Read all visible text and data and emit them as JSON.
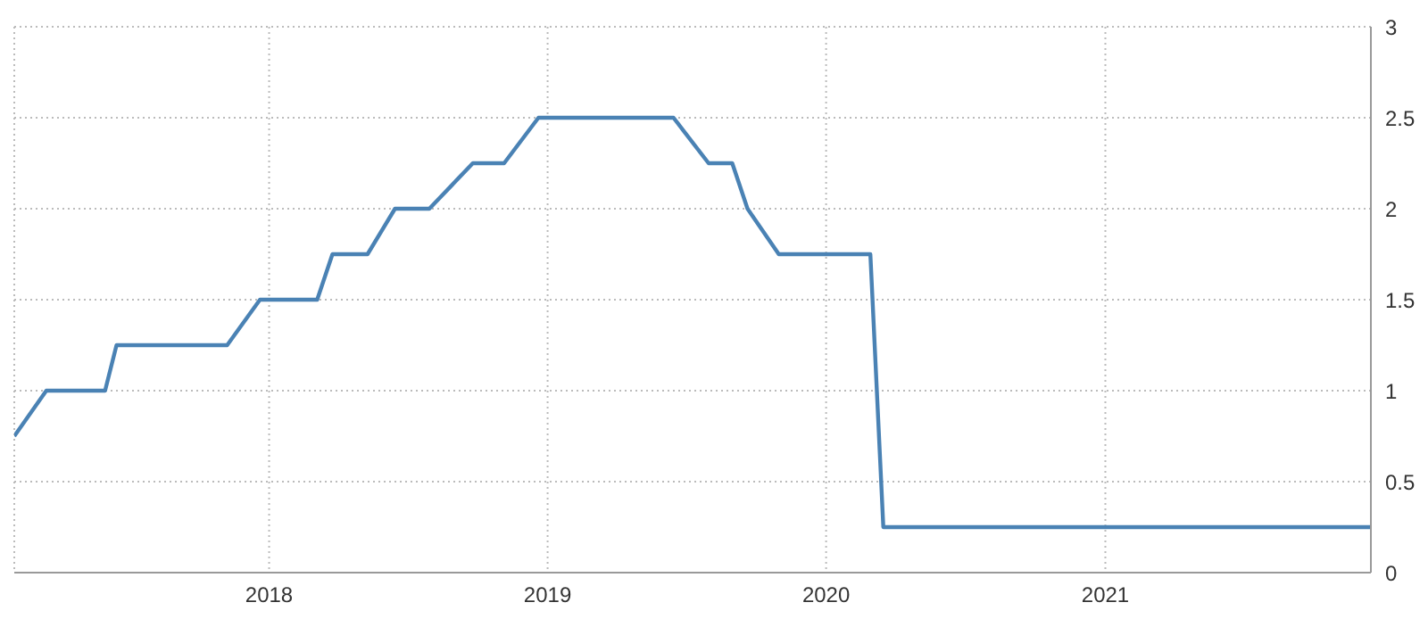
{
  "chart_data": {
    "type": "line",
    "x": [
      "2017-02-01",
      "2017-03-15",
      "2017-05-31",
      "2017-06-15",
      "2017-11-07",
      "2017-12-20",
      "2018-03-05",
      "2018-03-25",
      "2018-05-10",
      "2018-06-15",
      "2018-07-30",
      "2018-09-25",
      "2018-11-05",
      "2018-12-20",
      "2019-06-15",
      "2019-07-31",
      "2019-08-31",
      "2019-09-20",
      "2019-10-31",
      "2020-02-28",
      "2020-03-16",
      "2021-12-15"
    ],
    "series": [
      {
        "color": "#4a82b4",
        "values": [
          0.75,
          1.0,
          1.0,
          1.25,
          1.25,
          1.5,
          1.5,
          1.75,
          1.75,
          2.0,
          2.0,
          2.25,
          2.25,
          2.5,
          2.5,
          2.25,
          2.25,
          2.0,
          1.75,
          1.75,
          0.25,
          0.25
        ]
      }
    ],
    "xlim": [
      "2017-02-01",
      "2021-12-15"
    ],
    "xticks": [
      {
        "value": "2018-01-01",
        "label": "2018"
      },
      {
        "value": "2019-01-01",
        "label": "2019"
      },
      {
        "value": "2020-01-01",
        "label": "2020"
      },
      {
        "value": "2021-01-01",
        "label": "2021"
      }
    ],
    "ylim": [
      0,
      3
    ],
    "yticks": [
      0,
      0.5,
      1,
      1.5,
      2,
      2.5,
      3
    ],
    "grid": true,
    "legend": false,
    "marker": "none",
    "line_style": "solid"
  }
}
